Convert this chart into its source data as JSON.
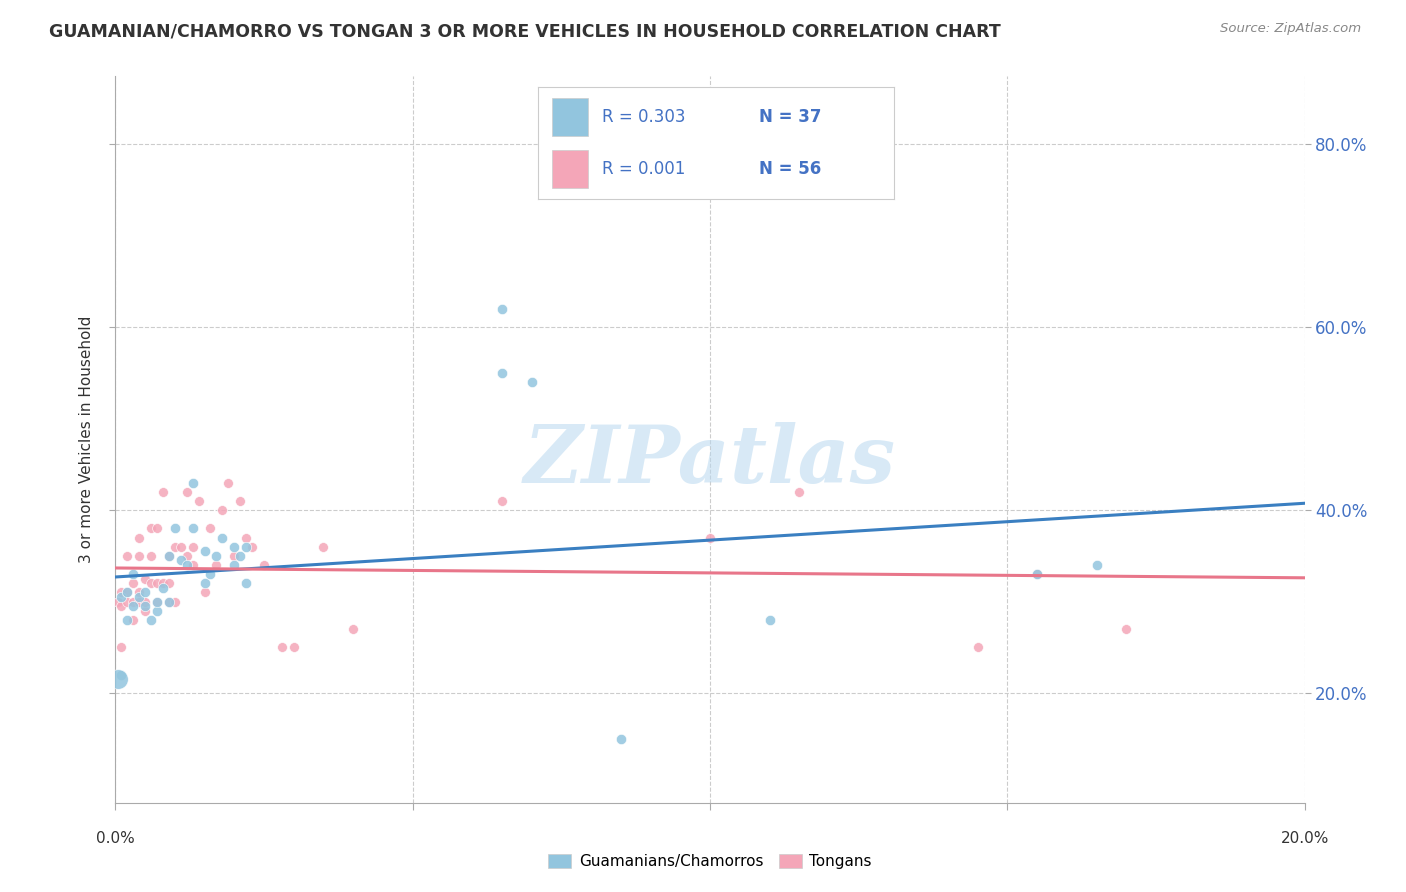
{
  "title": "GUAMANIAN/CHAMORRO VS TONGAN 3 OR MORE VEHICLES IN HOUSEHOLD CORRELATION CHART",
  "source": "Source: ZipAtlas.com",
  "ylabel": "3 or more Vehicles in Household",
  "legend1_label": "Guamanians/Chamorros",
  "legend2_label": "Tongans",
  "R1": "0.303",
  "N1": "37",
  "R2": "0.001",
  "N2": "56",
  "blue_color": "#92c5de",
  "pink_color": "#f4a6b8",
  "blue_line_color": "#3a7fc1",
  "pink_line_color": "#e8768a",
  "watermark": "ZIPatlas",
  "watermark_color": "#b8d8f0",
  "blue_dots_x": [
    0.001,
    0.002,
    0.002,
    0.003,
    0.003,
    0.004,
    0.005,
    0.005,
    0.006,
    0.007,
    0.007,
    0.008,
    0.009,
    0.009,
    0.01,
    0.011,
    0.012,
    0.013,
    0.013,
    0.015,
    0.015,
    0.016,
    0.017,
    0.018,
    0.02,
    0.02,
    0.021,
    0.022,
    0.022,
    0.065,
    0.065,
    0.07,
    0.085,
    0.11,
    0.155,
    0.165,
    0.001
  ],
  "blue_dots_y": [
    0.305,
    0.31,
    0.28,
    0.33,
    0.295,
    0.305,
    0.31,
    0.295,
    0.28,
    0.29,
    0.3,
    0.315,
    0.3,
    0.35,
    0.38,
    0.345,
    0.34,
    0.38,
    0.43,
    0.355,
    0.32,
    0.33,
    0.35,
    0.37,
    0.34,
    0.36,
    0.35,
    0.32,
    0.36,
    0.55,
    0.62,
    0.54,
    0.15,
    0.28,
    0.33,
    0.34,
    0.22
  ],
  "pink_dots_x": [
    0.0005,
    0.001,
    0.001,
    0.001,
    0.002,
    0.002,
    0.002,
    0.003,
    0.003,
    0.003,
    0.004,
    0.004,
    0.004,
    0.004,
    0.005,
    0.005,
    0.005,
    0.006,
    0.006,
    0.006,
    0.007,
    0.007,
    0.007,
    0.008,
    0.008,
    0.009,
    0.009,
    0.009,
    0.01,
    0.01,
    0.011,
    0.012,
    0.012,
    0.013,
    0.013,
    0.014,
    0.015,
    0.016,
    0.017,
    0.018,
    0.019,
    0.02,
    0.021,
    0.022,
    0.023,
    0.025,
    0.028,
    0.03,
    0.035,
    0.04,
    0.065,
    0.1,
    0.115,
    0.145,
    0.155,
    0.17
  ],
  "pink_dots_y": [
    0.3,
    0.295,
    0.31,
    0.25,
    0.3,
    0.31,
    0.35,
    0.28,
    0.3,
    0.32,
    0.3,
    0.31,
    0.35,
    0.37,
    0.29,
    0.3,
    0.325,
    0.32,
    0.35,
    0.38,
    0.3,
    0.32,
    0.38,
    0.32,
    0.42,
    0.3,
    0.32,
    0.35,
    0.3,
    0.36,
    0.36,
    0.35,
    0.42,
    0.34,
    0.36,
    0.41,
    0.31,
    0.38,
    0.34,
    0.4,
    0.43,
    0.35,
    0.41,
    0.37,
    0.36,
    0.34,
    0.25,
    0.25,
    0.36,
    0.27,
    0.41,
    0.37,
    0.42,
    0.25,
    0.33,
    0.27
  ],
  "blue_large_x": [
    0.0005
  ],
  "blue_large_y": [
    0.215
  ],
  "xmin": 0.0,
  "xmax": 0.2,
  "ymin": 0.08,
  "ymax": 0.875,
  "yticks": [
    0.2,
    0.4,
    0.6,
    0.8
  ],
  "xticks": [
    0.0,
    0.05,
    0.1,
    0.15,
    0.2
  ],
  "blue_dot_size": 55,
  "pink_dot_size": 50,
  "blue_large_size": 200,
  "label_color": "#4472c4",
  "n_color": "#4472c4",
  "text_color": "#333333"
}
